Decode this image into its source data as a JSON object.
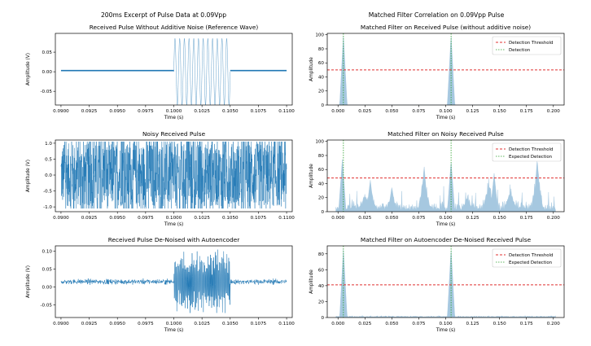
{
  "suptitles": {
    "left": "200ms Excerpt of Pulse Data at 0.09Vpp",
    "right": "Matched Filter Correlation on 0.09Vpp Pulse"
  },
  "colors": {
    "signal": "#1f77b4",
    "fill": "#a6c8e0",
    "threshold": "#e03030",
    "detection": "#2ca02c"
  },
  "chart_data": [
    {
      "type": "line",
      "title": "Received Pulse Without Additive Noise (Reference Wave)",
      "xlabel": "Time (s)",
      "ylabel": "Amplitude (V)",
      "xlim": [
        0.0895,
        0.1005
      ],
      "ylim": [
        -0.085,
        0.098
      ],
      "xticks": [
        "0.0900",
        "0.0925",
        "0.0950",
        "0.0975",
        "0.1000",
        "0.1025",
        "0.1050",
        "0.1075",
        "0.1100"
      ],
      "yticks": [
        "0.05",
        "0.00",
        "-0.05"
      ],
      "description_series": {
        "baseline_value": 0.003,
        "pulse_start": 0.1,
        "pulse_end": 0.105,
        "pulse_amplitude": 0.085
      }
    },
    {
      "type": "line",
      "title": "Noisy Received Pulse",
      "xlabel": "Time (s)",
      "ylabel": "Amplitude (V)",
      "ylim": [
        -1.15,
        1.1
      ],
      "xticks": [
        "0.0900",
        "0.0925",
        "0.0950",
        "0.0975",
        "0.1000",
        "0.1025",
        "0.1050",
        "0.1075",
        "0.1100"
      ],
      "yticks": [
        "1.0",
        "0.5",
        "0.0",
        "-0.5",
        "-1.0"
      ],
      "noise_amplitude": 1.0
    },
    {
      "type": "line",
      "title": "Received Pulse De-Noised with Autoencoder",
      "xlabel": "Time (s)",
      "ylabel": "Amplitude (V)",
      "ylim": [
        -0.085,
        0.115
      ],
      "xticks": [
        "0.0900",
        "0.0925",
        "0.0950",
        "0.0975",
        "0.1000",
        "0.1025",
        "0.1050",
        "0.1075",
        "0.1100"
      ],
      "yticks": [
        "0.10",
        "0.05",
        "0.00",
        "-0.05"
      ],
      "baseline_value": 0.015,
      "pulse_start": 0.1,
      "pulse_end": 0.105
    },
    {
      "type": "area",
      "title": "Matched Filter on Received Pulse (without additive noise)",
      "xlabel": "Time (s)",
      "ylabel": "Amplitude",
      "xlim": [
        -0.01,
        0.21
      ],
      "ylim": [
        0,
        102
      ],
      "xticks": [
        "0.000",
        "0.025",
        "0.050",
        "0.075",
        "0.100",
        "0.125",
        "0.150",
        "0.175",
        "0.200"
      ],
      "yticks": [
        "100",
        "80",
        "60",
        "40",
        "20",
        "0"
      ],
      "threshold": 50,
      "legend": [
        "Detection Threshold",
        "Detection"
      ],
      "legend_loc": "top-right",
      "peaks": [
        {
          "x": 0.005,
          "y": 100
        },
        {
          "x": 0.105,
          "y": 100
        }
      ],
      "detections": [
        0.005,
        0.105
      ]
    },
    {
      "type": "area",
      "title": "Matched Filter on Noisy Received Pulse",
      "xlabel": "Time (s)",
      "ylabel": "Amplitude",
      "xlim": [
        -0.01,
        0.21
      ],
      "ylim": [
        0,
        102
      ],
      "xticks": [
        "0.000",
        "0.025",
        "0.050",
        "0.075",
        "0.100",
        "0.125",
        "0.150",
        "0.175",
        "0.200"
      ],
      "yticks": [
        "100",
        "80",
        "60",
        "40",
        "20",
        "0"
      ],
      "threshold": 48,
      "legend": [
        "Detection Threshold",
        "Expected Detection"
      ],
      "legend_loc": "top-right",
      "peaks": [
        {
          "x": 0.004,
          "y": 75
        },
        {
          "x": 0.03,
          "y": 45
        },
        {
          "x": 0.05,
          "y": 35
        },
        {
          "x": 0.08,
          "y": 65
        },
        {
          "x": 0.105,
          "y": 72
        },
        {
          "x": 0.145,
          "y": 55
        },
        {
          "x": 0.185,
          "y": 75
        }
      ],
      "detections": [
        0.005,
        0.105
      ]
    },
    {
      "type": "area",
      "title": "Matched Filter on Autoencoder De-Noised Received Pulse",
      "xlabel": "Time (s)",
      "ylabel": "Amplitude",
      "xlim": [
        -0.01,
        0.21
      ],
      "ylim": [
        0,
        90
      ],
      "xticks": [
        "0.000",
        "0.025",
        "0.050",
        "0.075",
        "0.100",
        "0.125",
        "0.150",
        "0.175",
        "0.200"
      ],
      "yticks": [
        "80",
        "60",
        "40",
        "20",
        "0"
      ],
      "threshold": 41,
      "legend": [
        "Detection Threshold",
        "Expected Detection"
      ],
      "legend_loc": "top-right",
      "peaks": [
        {
          "x": 0.005,
          "y": 87
        },
        {
          "x": 0.105,
          "y": 87
        }
      ],
      "detections": [
        0.005,
        0.105
      ]
    }
  ]
}
